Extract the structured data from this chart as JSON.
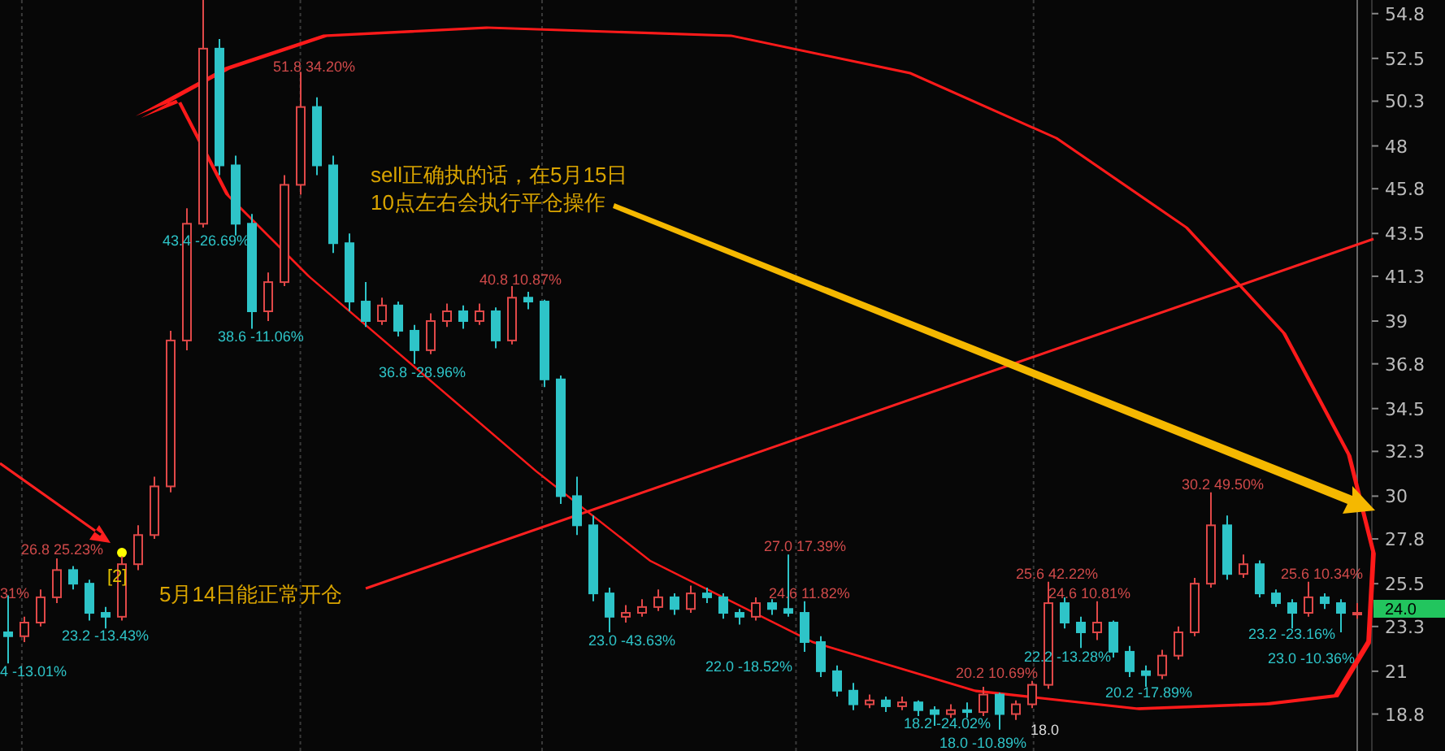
{
  "chart_data": {
    "type": "candlestick",
    "categories": [
      null,
      null,
      null,
      null,
      null,
      null,
      null,
      null,
      null,
      null,
      null,
      null,
      null,
      null,
      null,
      null,
      null,
      null,
      null,
      null,
      null,
      null,
      null,
      null,
      null,
      null,
      null,
      null,
      null,
      null,
      null,
      null,
      null,
      null,
      null,
      null,
      null,
      null,
      null,
      null,
      null,
      null,
      null,
      null,
      null,
      null,
      null,
      null,
      null,
      null,
      null,
      null,
      null,
      null,
      null,
      null,
      null,
      null,
      null,
      null,
      null,
      null,
      null,
      null,
      null,
      null,
      null,
      null,
      null,
      null,
      null,
      null,
      null,
      null,
      null,
      null,
      null,
      null,
      null,
      null,
      null,
      null,
      null,
      null
    ],
    "ohlc": [
      [
        23.0,
        24.9,
        21.4,
        22.8
      ],
      [
        22.8,
        23.8,
        22.5,
        23.5
      ],
      [
        23.5,
        25.2,
        23.3,
        24.8
      ],
      [
        24.8,
        26.8,
        24.5,
        26.2
      ],
      [
        26.2,
        26.4,
        25.2,
        25.5
      ],
      [
        25.5,
        25.7,
        23.6,
        24.0
      ],
      [
        24.0,
        24.3,
        23.2,
        23.8
      ],
      [
        23.8,
        26.9,
        23.6,
        26.5
      ],
      [
        26.5,
        28.5,
        26.2,
        28.0
      ],
      [
        28.0,
        31.0,
        27.8,
        30.5
      ],
      [
        30.5,
        38.5,
        30.2,
        38.0
      ],
      [
        38.0,
        44.8,
        37.5,
        44.0
      ],
      [
        44.0,
        55.5,
        43.8,
        53.0
      ],
      [
        53.0,
        53.5,
        46.5,
        47.0
      ],
      [
        47.0,
        47.5,
        43.4,
        44.0
      ],
      [
        44.0,
        44.5,
        38.6,
        39.5
      ],
      [
        39.5,
        41.5,
        39.0,
        41.0
      ],
      [
        41.0,
        46.5,
        40.8,
        46.0
      ],
      [
        46.0,
        51.8,
        45.5,
        50.0
      ],
      [
        50.0,
        50.5,
        46.5,
        47.0
      ],
      [
        47.0,
        47.5,
        42.5,
        43.0
      ],
      [
        43.0,
        43.5,
        39.5,
        40.0
      ],
      [
        40.0,
        41.0,
        38.7,
        39.0
      ],
      [
        39.0,
        40.2,
        38.8,
        39.8
      ],
      [
        39.8,
        40.0,
        38.2,
        38.5
      ],
      [
        38.5,
        38.8,
        36.8,
        37.5
      ],
      [
        37.5,
        39.4,
        37.3,
        39.0
      ],
      [
        39.0,
        39.9,
        38.7,
        39.5
      ],
      [
        39.5,
        39.8,
        38.6,
        39.0
      ],
      [
        39.0,
        39.9,
        38.8,
        39.5
      ],
      [
        39.5,
        39.7,
        37.6,
        38.0
      ],
      [
        38.0,
        40.8,
        37.8,
        40.2
      ],
      [
        40.2,
        40.5,
        39.6,
        40.0
      ],
      [
        40.0,
        40.1,
        35.6,
        36.0
      ],
      [
        36.0,
        36.2,
        29.6,
        30.0
      ],
      [
        30.0,
        31.0,
        28.0,
        28.5
      ],
      [
        28.5,
        29.0,
        24.6,
        25.0
      ],
      [
        25.0,
        25.3,
        23.0,
        23.8
      ],
      [
        23.8,
        24.4,
        23.5,
        24.0
      ],
      [
        24.0,
        24.7,
        23.8,
        24.3
      ],
      [
        24.3,
        25.2,
        24.1,
        24.8
      ],
      [
        24.8,
        25.0,
        23.9,
        24.2
      ],
      [
        24.2,
        25.4,
        24.0,
        25.0
      ],
      [
        25.0,
        25.3,
        24.5,
        24.8
      ],
      [
        24.8,
        25.0,
        23.7,
        24.0
      ],
      [
        24.0,
        24.2,
        23.4,
        23.8
      ],
      [
        23.8,
        24.8,
        23.6,
        24.5
      ],
      [
        24.5,
        24.7,
        23.9,
        24.2
      ],
      [
        24.2,
        27.0,
        23.8,
        24.0
      ],
      [
        24.0,
        24.6,
        22.0,
        22.5
      ],
      [
        22.5,
        22.8,
        20.7,
        21.0
      ],
      [
        21.0,
        21.3,
        19.7,
        20.0
      ],
      [
        20.0,
        20.4,
        19.0,
        19.3
      ],
      [
        19.3,
        19.8,
        19.1,
        19.5
      ],
      [
        19.5,
        19.7,
        18.9,
        19.2
      ],
      [
        19.2,
        19.7,
        19.0,
        19.4
      ],
      [
        19.4,
        19.5,
        18.7,
        19.0
      ],
      [
        19.0,
        19.2,
        18.2,
        18.8
      ],
      [
        18.8,
        19.3,
        18.6,
        19.0
      ],
      [
        19.0,
        19.4,
        18.6,
        18.9
      ],
      [
        18.9,
        20.2,
        18.7,
        19.8
      ],
      [
        19.8,
        19.9,
        18.0,
        18.8
      ],
      [
        18.8,
        19.5,
        18.5,
        19.3
      ],
      [
        19.3,
        20.5,
        19.1,
        20.3
      ],
      [
        20.3,
        25.6,
        20.1,
        24.5
      ],
      [
        24.5,
        24.8,
        23.2,
        23.5
      ],
      [
        23.5,
        23.8,
        22.2,
        23.0
      ],
      [
        23.0,
        24.6,
        22.6,
        23.5
      ],
      [
        23.5,
        23.6,
        21.7,
        22.0
      ],
      [
        22.0,
        22.3,
        20.7,
        21.0
      ],
      [
        21.0,
        21.3,
        20.2,
        20.8
      ],
      [
        20.8,
        22.1,
        20.6,
        21.8
      ],
      [
        21.8,
        23.3,
        21.6,
        23.0
      ],
      [
        23.0,
        25.8,
        22.8,
        25.5
      ],
      [
        25.5,
        30.2,
        25.3,
        28.5
      ],
      [
        28.5,
        29.0,
        25.7,
        26.0
      ],
      [
        26.0,
        27.0,
        25.8,
        26.5
      ],
      [
        26.5,
        26.7,
        24.8,
        25.0
      ],
      [
        25.0,
        25.2,
        24.3,
        24.5
      ],
      [
        24.5,
        24.7,
        23.2,
        24.0
      ],
      [
        24.0,
        25.6,
        23.8,
        24.8
      ],
      [
        24.8,
        25.0,
        24.2,
        24.5
      ],
      [
        24.5,
        24.7,
        23.0,
        24.0
      ],
      [
        24.0,
        24.5,
        23.7,
        24.0
      ]
    ],
    "ylim": [
      16.9,
      55.5
    ],
    "yticks": [
      18.8,
      21.0,
      23.3,
      25.5,
      27.8,
      30.0,
      32.3,
      34.5,
      36.8,
      39.0,
      41.3,
      43.5,
      45.8,
      48.0,
      50.3,
      52.5,
      54.8
    ],
    "tick_labels": "y",
    "grid": "x",
    "annotations": [
      "31%",
      "4 -13.01%",
      "26.8 25.23%",
      "23.2 -13.43%",
      "[2]",
      "43.4 -26.69%",
      "38.6 -11.06%",
      "51.8 34.20%",
      "sell正确执的话，在5月15日\n10点左右会执行平仓操作",
      "36.8 -28.96%",
      "40.8 10.87%",
      "5月14日能正常开仓",
      "23.0 -43.63%",
      "27.0 17.39%",
      "24.6 11.82%",
      "22.0 -18.52%",
      "18.2 -24.02%",
      "20.2 10.69%",
      "18.0 -10.89%",
      "18.0",
      "25.6 42.22%",
      "22.2 -13.28%",
      "24.6 10.81%",
      "20.2 -17.89%",
      "30.2 49.50%",
      "23.2 -23.16%",
      "25.6 10.34%",
      "23.0 -10.36%",
      "24.0"
    ]
  }
}
